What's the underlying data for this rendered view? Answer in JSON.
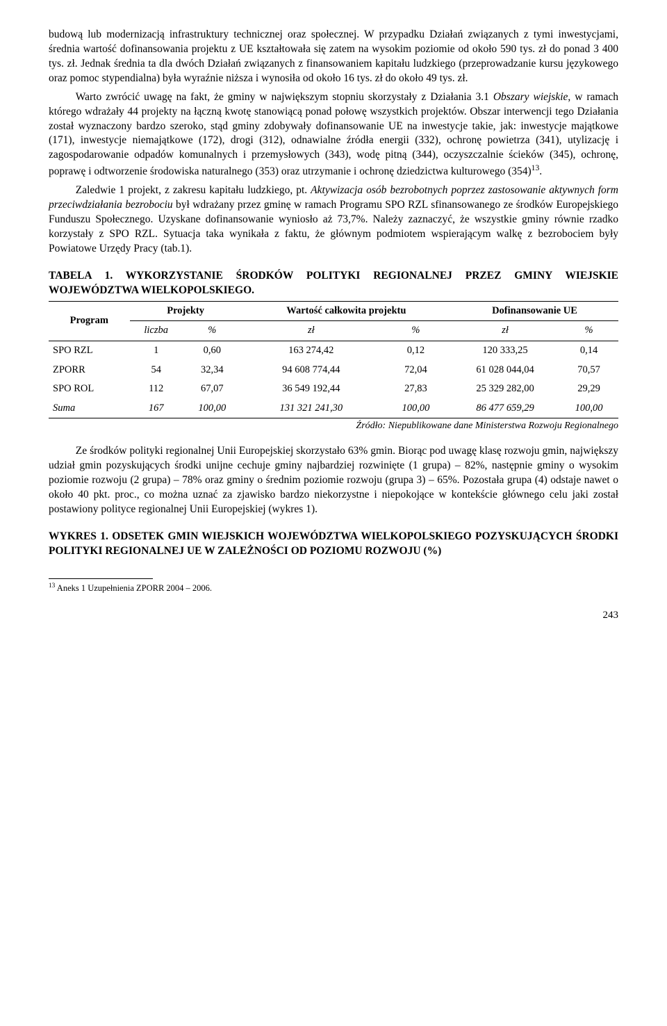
{
  "paragraphs": {
    "p1": "budową lub modernizacją infrastruktury technicznej oraz społecznej. W przypadku Działań związanych z tymi inwestycjami, średnia wartość dofinansowania projektu z UE kształtowała się zatem na wysokim poziomie od około 590 tys. zł do ponad 3 400 tys. zł. Jednak średnia ta dla dwóch Działań związanych z finansowaniem kapitału ludzkiego (przeprowadzanie kursu językowego oraz pomoc stypendialna) była wyraźnie niższa i wynosiła od około 16 tys. zł do około 49 tys. zł.",
    "p2_a": "Warto zwrócić uwagę na fakt, że gminy w największym stopniu skorzystały z Działania 3.1 ",
    "p2_i": "Obszary wiejskie",
    "p2_b": ", w ramach którego wdrażały 44 projekty na łączną kwotę stanowiącą ponad połowę wszystkich projektów. Obszar interwencji tego Działania został wyznaczony bardzo szeroko, stąd gminy zdobywały dofinansowanie UE na inwestycje takie, jak: inwestycje majątkowe (171), inwestycje niemajątkowe (172), drogi (312), odnawialne źródła energii (332), ochronę powietrza (341), utylizację i zagospodarowanie odpadów komunalnych i przemysłowych (343), wodę pitną (344), oczyszczalnie ścieków (345), ochronę, poprawę i odtworzenie środowiska naturalnego (353) oraz utrzymanie i ochronę dziedzictwa kulturowego (354)",
    "p2_c": ".",
    "p3_a": "Zaledwie 1 projekt, z zakresu kapitału ludzkiego, pt. ",
    "p3_i": "Aktywizacja osób bezrobotnych poprzez zastosowanie aktywnych form przeciwdziałania bezrobociu",
    "p3_b": " był wdrażany przez gminę w ramach Programu SPO RZL sfinansowanego ze środków Europejskiego Funduszu Społecznego. Uzyskane dofinansowanie wyniosło aż 73,7%. Należy zaznaczyć, że wszystkie gminy równie rzadko korzystały z SPO RZL. Sytuacja taka wynikała z faktu, że głównym podmiotem wspierającym walkę z bezrobociem były Powiatowe Urzędy Pracy (tab.1).",
    "p4": "Ze środków polityki regionalnej Unii Europejskiej skorzystało 63% gmin. Biorąc pod uwagę klasę rozwoju gmin, największy udział gmin pozyskujących środki unijne cechuje gminy najbardziej rozwinięte (1 grupa) – 82%, następnie gminy o wysokim poziomie rozwoju (2 grupa) – 78% oraz gminy o średnim poziomie rozwoju (grupa 3) – 65%. Pozostała grupa (4) odstaje nawet o około 40 pkt. proc., co można uznać za zjawisko bardzo niekorzystne i niepokojące w kontekście głównego celu jaki został postawiony polityce regionalnej Unii Europejskiej (wykres 1)."
  },
  "table_heading": "TABELA 1. WYKORZYSTANIE ŚRODKÓW POLITYKI REGIONALNEJ PRZEZ GMINY WIEJSKIE WOJEWÓDZTWA WIELKOPOLSKIEGO.",
  "table": {
    "head1": {
      "program": "Program",
      "projekty": "Projekty",
      "wartosc": "Wartość całkowita projektu",
      "dof": "Dofinansowanie UE"
    },
    "head2": {
      "liczba": "liczba",
      "pct": "%",
      "zl": "zł",
      "pct2": "%",
      "zl2": "zł",
      "pct3": "%"
    },
    "rows": [
      {
        "program": "SPO RZL",
        "liczba": "1",
        "lpct": "0,60",
        "zl": "163 274,42",
        "zpct": "0,12",
        "dof": "120 333,25",
        "dpct": "0,14"
      },
      {
        "program": "ZPORR",
        "liczba": "54",
        "lpct": "32,34",
        "zl": "94 608 774,44",
        "zpct": "72,04",
        "dof": "61 028 044,04",
        "dpct": "70,57"
      },
      {
        "program": "SPO ROL",
        "liczba": "112",
        "lpct": "67,07",
        "zl": "36 549 192,44",
        "zpct": "27,83",
        "dof": "25 329 282,00",
        "dpct": "29,29"
      },
      {
        "program": "Suma",
        "liczba": "167",
        "lpct": "100,00",
        "zl": "131 321 241,30",
        "zpct": "100,00",
        "dof": "86 477 659,29",
        "dpct": "100,00"
      }
    ]
  },
  "table_source": "Źródło: Niepublikowane dane Ministerstwa Rozwoju Regionalnego",
  "chart_heading": "WYKRES 1. ODSETEK GMIN WIEJSKICH WOJEWÓDZTWA WIELKOPOLSKIEGO POZYSKUJĄCYCH ŚRODKI POLITYKI REGIONALNEJ UE W ZALEŻNOŚCI OD POZIOMU ROZWOJU (%)",
  "footnote_marker": "13",
  "footnote_text": " Aneks 1 Uzupełnienia ZPORR 2004 – 2006.",
  "page_number": "243"
}
